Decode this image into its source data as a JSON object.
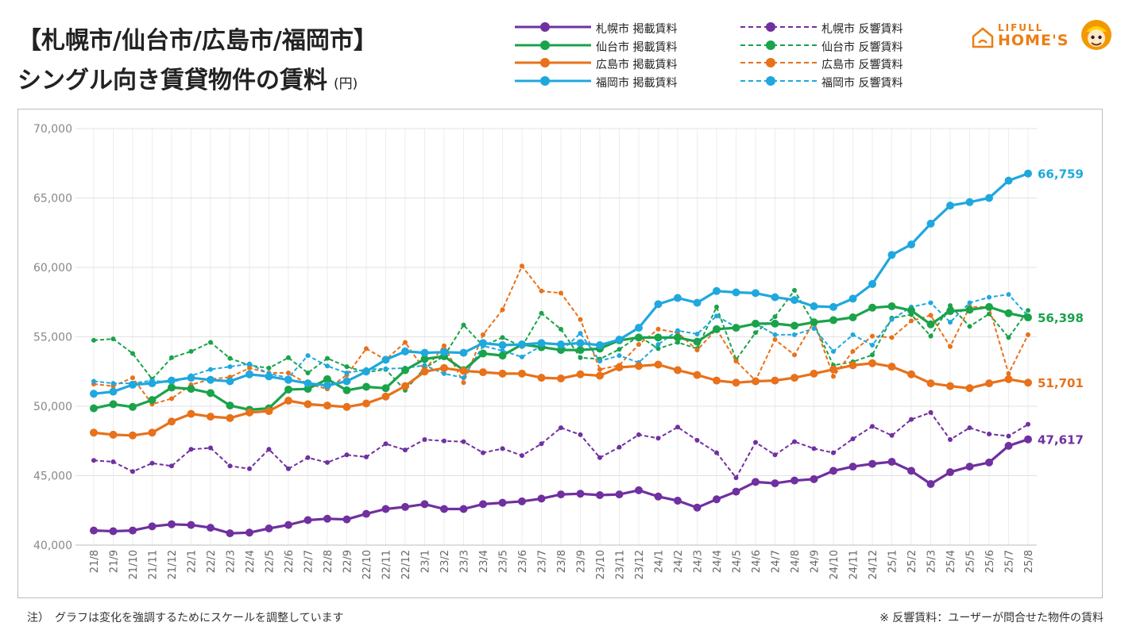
{
  "title_line1": "【札幌市/仙台市/広島市/福岡市】",
  "title_line2": "シングル向き賃貸物件の賃料",
  "title_unit": "(円)",
  "logo": {
    "top": "LIFULL",
    "main": "HOME'S"
  },
  "notes": {
    "left": "注）　グラフは変化を強調するためにスケールを調整しています",
    "right": "※ 反響賃料：ユーザーが問合せた物件の賃料"
  },
  "colors": {
    "sapporo": "#7030a0",
    "sendai": "#1aa34a",
    "hiroshima": "#e8711a",
    "fukuoka": "#1fa8de"
  },
  "legend": [
    {
      "label": "札幌市 掲載賃料",
      "color": "#7030a0",
      "dashed": false
    },
    {
      "label": "仙台市 掲載賃料",
      "color": "#1aa34a",
      "dashed": false
    },
    {
      "label": "広島市 掲載賃料",
      "color": "#e8711a",
      "dashed": false
    },
    {
      "label": "福岡市 掲載賃料",
      "color": "#1fa8de",
      "dashed": false
    },
    {
      "label": "札幌市 反響賃料",
      "color": "#7030a0",
      "dashed": true
    },
    {
      "label": "仙台市 反響賃料",
      "color": "#1aa34a",
      "dashed": true
    },
    {
      "label": "広島市 反響賃料",
      "color": "#e8711a",
      "dashed": true
    },
    {
      "label": "福岡市 反響賃料",
      "color": "#1fa8de",
      "dashed": true
    }
  ],
  "chart_data": {
    "type": "line",
    "title": "シングル向き賃貸物件の賃料",
    "xlabel": "",
    "ylabel": "(円)",
    "ylim": [
      40000,
      70000
    ],
    "yticks": [
      40000,
      45000,
      50000,
      55000,
      60000,
      65000,
      70000
    ],
    "ytick_labels": [
      "40,000",
      "45,000",
      "50,000",
      "55,000",
      "60,000",
      "65,000",
      "70,000"
    ],
    "grid": true,
    "categories": [
      "21/8",
      "21/9",
      "21/10",
      "21/11",
      "21/12",
      "22/1",
      "22/2",
      "22/3",
      "22/4",
      "22/5",
      "22/6",
      "22/7",
      "22/8",
      "22/9",
      "22/10",
      "22/11",
      "22/12",
      "23/1",
      "23/2",
      "23/3",
      "23/4",
      "23/5",
      "23/6",
      "23/7",
      "23/8",
      "23/9",
      "23/10",
      "23/11",
      "23/12",
      "24/1",
      "24/2",
      "24/3",
      "24/4",
      "24/5",
      "24/6",
      "24/7",
      "24/8",
      "24/9",
      "24/10",
      "24/11",
      "24/12",
      "25/1",
      "25/2",
      "25/3",
      "25/4",
      "25/5",
      "25/6",
      "25/7",
      "25/8"
    ],
    "series": [
      {
        "name": "札幌市 掲載賃料",
        "city": "sapporo",
        "dashed": false,
        "end_label": "47,617",
        "values": [
          41050,
          41000,
          41050,
          41350,
          41500,
          41450,
          41250,
          40850,
          40900,
          41200,
          41450,
          41800,
          41900,
          41850,
          42250,
          42600,
          42750,
          42950,
          42600,
          42600,
          42950,
          43050,
          43150,
          43350,
          43650,
          43700,
          43600,
          43650,
          43950,
          43500,
          43200,
          42700,
          43300,
          43850,
          44550,
          44450,
          44650,
          44750,
          45350,
          45650,
          45850,
          46000,
          45350,
          44400,
          45250,
          45650,
          45950,
          47150,
          47617
        ]
      },
      {
        "name": "仙台市 掲載賃料",
        "city": "sendai",
        "dashed": false,
        "end_label": "56,398",
        "values": [
          49850,
          50150,
          49950,
          50450,
          51350,
          51250,
          50950,
          50050,
          49750,
          49850,
          51200,
          51250,
          51950,
          51150,
          51400,
          51300,
          52600,
          53400,
          53600,
          52600,
          53800,
          53650,
          54450,
          54250,
          54050,
          54050,
          54150,
          54750,
          54950,
          54950,
          54950,
          54650,
          55550,
          55650,
          55950,
          55950,
          55800,
          56050,
          56200,
          56400,
          57100,
          57200,
          56900,
          55900,
          56850,
          56950,
          57150,
          56700,
          56398
        ]
      },
      {
        "name": "広島市 掲載賃料",
        "city": "hiroshima",
        "dashed": false,
        "end_label": "51,701",
        "values": [
          48100,
          47950,
          47900,
          48100,
          48900,
          49450,
          49250,
          49150,
          49550,
          49650,
          50400,
          50150,
          50050,
          49950,
          50200,
          50700,
          51450,
          52500,
          52750,
          52550,
          52450,
          52350,
          52350,
          52050,
          52000,
          52300,
          52200,
          52800,
          52900,
          53000,
          52600,
          52250,
          51850,
          51700,
          51800,
          51850,
          52050,
          52350,
          52650,
          52950,
          53100,
          52850,
          52300,
          51650,
          51450,
          51300,
          51650,
          51950,
          51701
        ]
      },
      {
        "name": "福岡市 掲載賃料",
        "city": "fukuoka",
        "dashed": false,
        "end_label": "66,759",
        "values": [
          50900,
          51050,
          51550,
          51650,
          51850,
          52050,
          51900,
          51800,
          52300,
          52150,
          51900,
          51650,
          51500,
          51800,
          52500,
          53350,
          53950,
          53850,
          53900,
          53850,
          54550,
          54400,
          54450,
          54550,
          54450,
          54550,
          54400,
          54800,
          55650,
          57350,
          57800,
          57450,
          58300,
          58200,
          58150,
          57850,
          57650,
          57200,
          57150,
          57750,
          58800,
          60900,
          61650,
          63150,
          64450,
          64700,
          65000,
          66250,
          66759
        ]
      },
      {
        "name": "札幌市 反響賃料",
        "city": "sapporo",
        "dashed": true,
        "end_label": "",
        "values": [
          46100,
          46000,
          45300,
          45900,
          45700,
          46900,
          47000,
          45700,
          45500,
          46900,
          45500,
          46300,
          45950,
          46500,
          46350,
          47300,
          46850,
          47600,
          47500,
          47450,
          46650,
          46950,
          46450,
          47300,
          48450,
          47950,
          46300,
          47050,
          47950,
          47700,
          48500,
          47550,
          46650,
          44850,
          47400,
          46500,
          47450,
          46950,
          46650,
          47650,
          48550,
          47900,
          49050,
          49550,
          47600,
          48450,
          48000,
          47850,
          48700
        ]
      },
      {
        "name": "仙台市 反響賃料",
        "city": "sendai",
        "dashed": true,
        "end_label": "",
        "values": [
          54750,
          54850,
          53800,
          51950,
          53500,
          53950,
          54600,
          53450,
          52950,
          52750,
          53500,
          52400,
          53450,
          52850,
          52450,
          52650,
          51150,
          52750,
          53600,
          55850,
          54350,
          54950,
          54300,
          56700,
          55550,
          53500,
          53400,
          54100,
          55050,
          54150,
          54600,
          54150,
          57150,
          53350,
          55300,
          56450,
          58350,
          55950,
          52950,
          53200,
          53700,
          56350,
          56600,
          55050,
          57250,
          55750,
          56650,
          54950,
          56900
        ]
      },
      {
        "name": "広島市 反響賃料",
        "city": "hiroshima",
        "dashed": true,
        "end_label": "",
        "values": [
          51600,
          51450,
          52050,
          50150,
          50550,
          51550,
          51950,
          52100,
          52750,
          52400,
          52400,
          51600,
          51250,
          52250,
          54150,
          53350,
          54600,
          52600,
          54350,
          51700,
          55150,
          56950,
          60100,
          58300,
          58150,
          56250,
          52650,
          52950,
          54450,
          55550,
          55300,
          54050,
          55550,
          53250,
          51850,
          54800,
          53700,
          56100,
          52150,
          53950,
          55050,
          54950,
          56150,
          56550,
          54300,
          57150,
          57150,
          52350,
          55150
        ]
      },
      {
        "name": "福岡市 反響賃料",
        "city": "fukuoka",
        "dashed": true,
        "end_label": "",
        "values": [
          51800,
          51650,
          51650,
          51850,
          51700,
          52200,
          52650,
          52850,
          53050,
          52350,
          52050,
          53650,
          52900,
          52400,
          52650,
          52700,
          52750,
          52950,
          52350,
          52050,
          54350,
          54000,
          53550,
          54350,
          53950,
          55250,
          53250,
          53650,
          53150,
          54450,
          55450,
          55200,
          56500,
          55700,
          55950,
          55150,
          55150,
          55600,
          53950,
          55150,
          54400,
          56250,
          57150,
          57450,
          56050,
          57450,
          57850,
          58050,
          56500
        ]
      }
    ]
  }
}
